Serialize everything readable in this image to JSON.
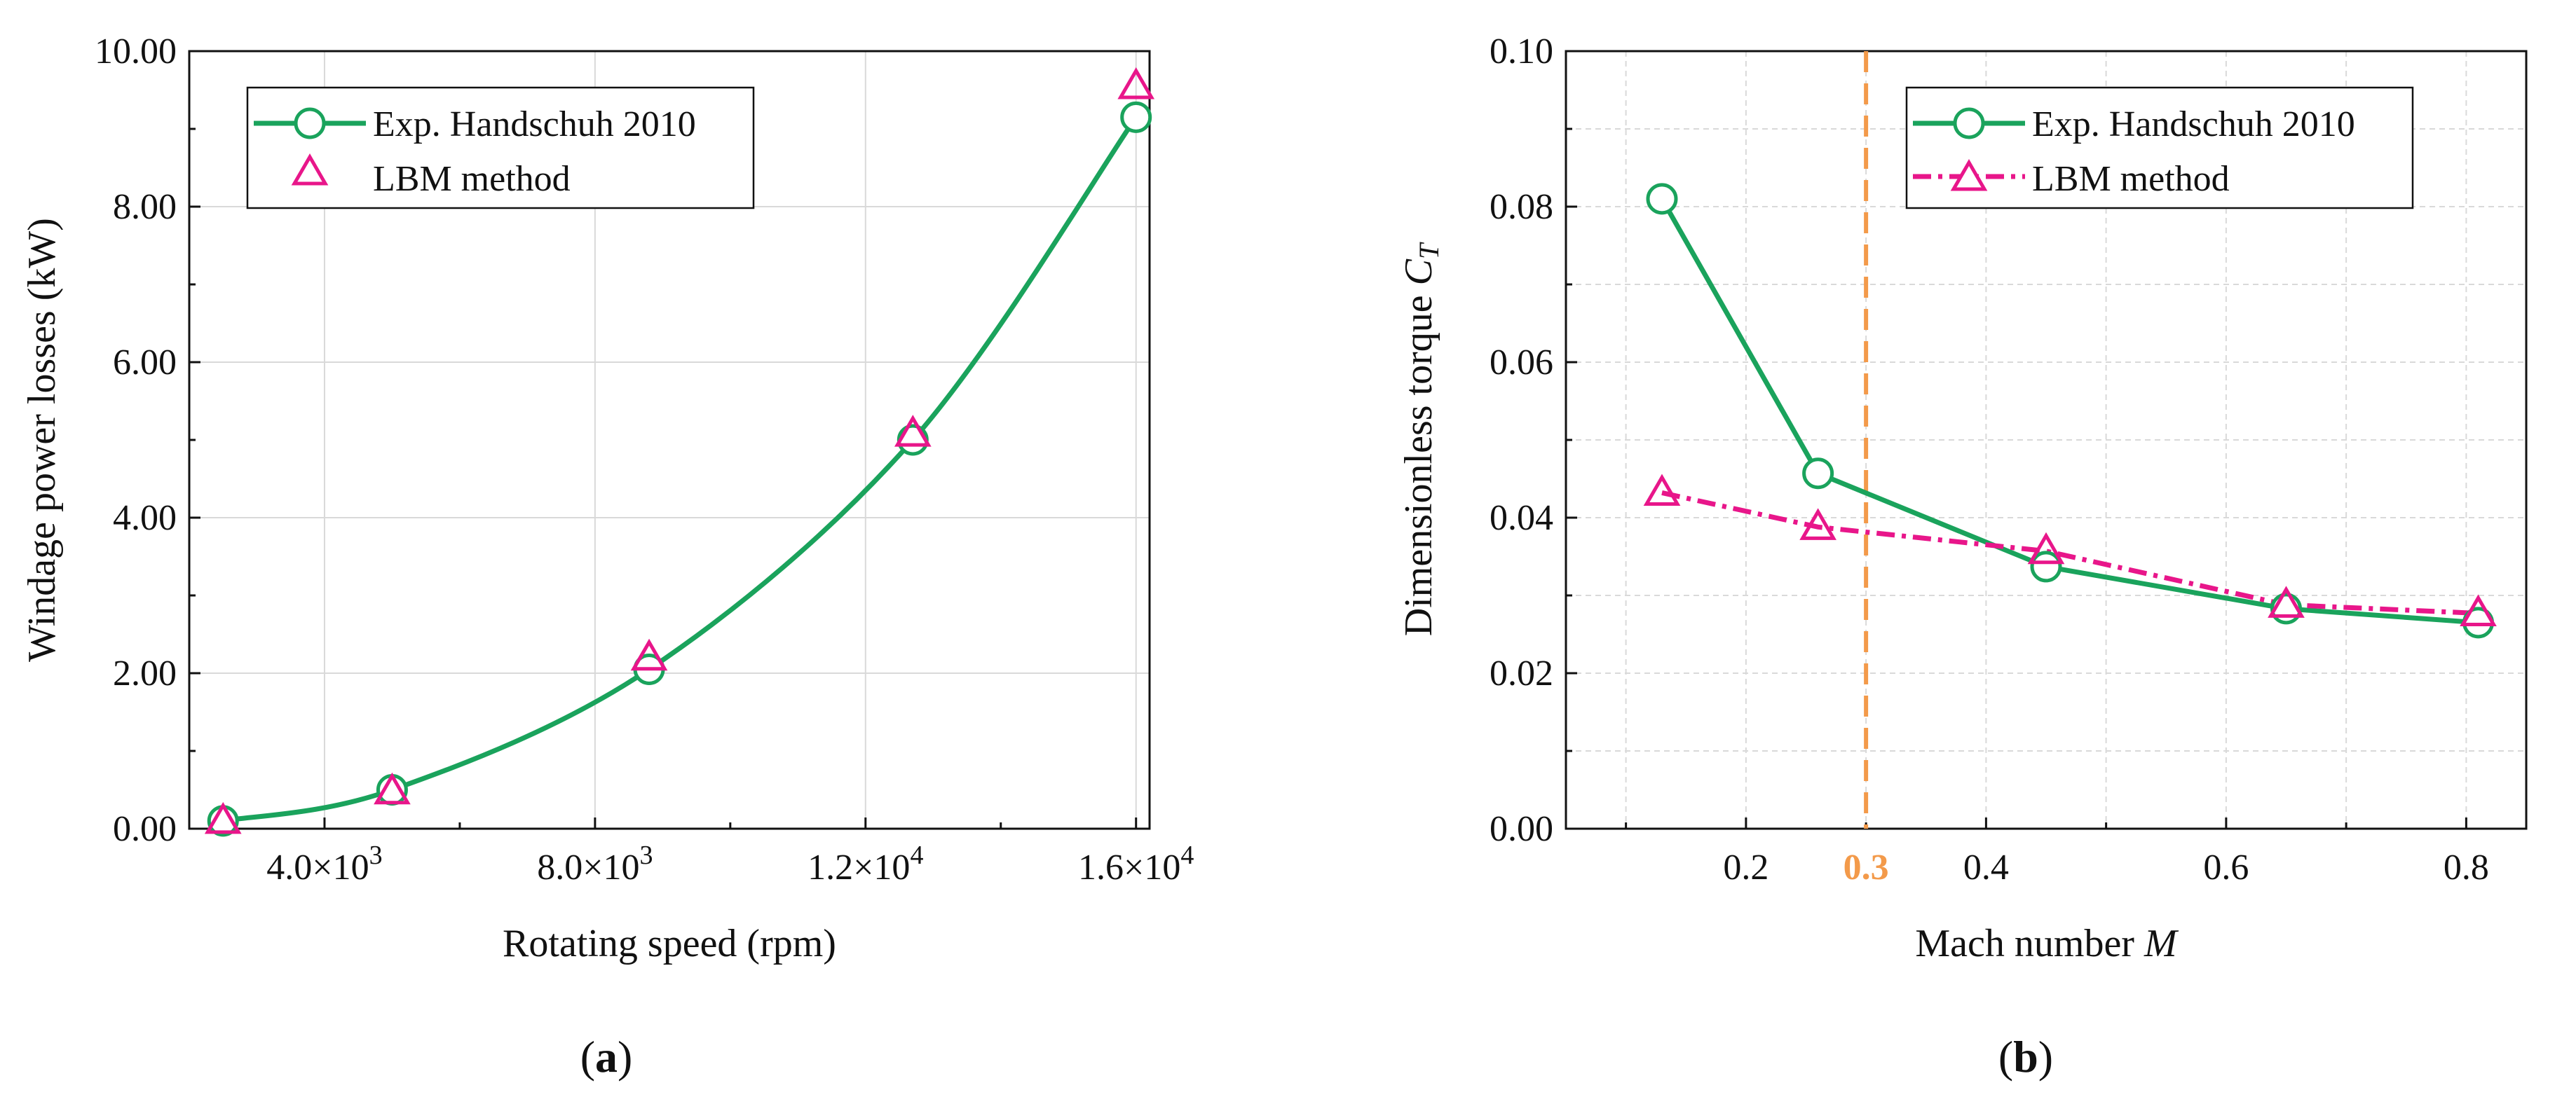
{
  "colors": {
    "exp": "#1aa35c",
    "lbm": "#e8168a",
    "vline": "#f39a4a",
    "axis": "#111111",
    "grid": "#d9d9d9"
  },
  "chart_data": [
    {
      "type": "line",
      "panel_label": "a",
      "xlabel": "Rotating speed (rpm)",
      "ylabel": "Windage power losses (kW)",
      "xlim": [
        2000,
        16200
      ],
      "ylim": [
        0,
        10
      ],
      "xticks": [
        4000,
        8000,
        12000,
        16000
      ],
      "xtick_mantissas": [
        "4.0",
        "8.0",
        "1.2",
        "1.6"
      ],
      "xtick_exponents": [
        "3",
        "3",
        "4",
        "4"
      ],
      "xtick_base": "×10",
      "yticks": [
        0,
        2,
        4,
        6,
        8,
        10
      ],
      "ytick_labels": [
        "0.00",
        "2.00",
        "4.00",
        "6.00",
        "8.00",
        "10.00"
      ],
      "legend": {
        "position": "top-left",
        "entries": [
          "Exp. Handschuh 2010",
          "LBM method"
        ]
      },
      "series": [
        {
          "name": "Exp. Handschuh 2010",
          "marker": "circle",
          "line": "smooth",
          "x": [
            2500,
            5000,
            8800,
            12700,
            16000
          ],
          "y": [
            0.1,
            0.5,
            2.05,
            5.0,
            9.15
          ]
        },
        {
          "name": "LBM method",
          "marker": "triangle",
          "line": "none",
          "x": [
            2500,
            5000,
            8800,
            12700,
            16000
          ],
          "y": [
            0.1,
            0.48,
            2.2,
            5.08,
            9.55
          ]
        }
      ]
    },
    {
      "type": "line",
      "panel_label": "b",
      "xlabel_text": "Mach number ",
      "xlabel_symbol": "M",
      "ylabel_text": "Dimensionless torque ",
      "ylabel_symbol": "C",
      "ylabel_subscript": "T",
      "xlim": [
        0.05,
        0.85
      ],
      "ylim": [
        0,
        0.1
      ],
      "xticks": [
        0.2,
        0.4,
        0.6,
        0.8
      ],
      "xtick_labels": [
        "0.2",
        "0.4",
        "0.6",
        "0.8"
      ],
      "yticks": [
        0,
        0.02,
        0.04,
        0.06,
        0.08,
        0.1
      ],
      "ytick_labels": [
        "0.00",
        "0.02",
        "0.04",
        "0.06",
        "0.08",
        "0.10"
      ],
      "vline": {
        "x": 0.3,
        "label": "0.3"
      },
      "legend": {
        "position": "top-right",
        "entries": [
          "Exp. Handschuh 2010",
          "LBM method"
        ]
      },
      "series": [
        {
          "name": "Exp. Handschuh 2010",
          "marker": "circle",
          "line": "solid",
          "x": [
            0.13,
            0.26,
            0.45,
            0.65,
            0.81
          ],
          "y": [
            0.081,
            0.0457,
            0.0337,
            0.0283,
            0.0265
          ]
        },
        {
          "name": "LBM method",
          "marker": "triangle",
          "line": "dashdot",
          "x": [
            0.13,
            0.26,
            0.45,
            0.65,
            0.81
          ],
          "y": [
            0.0432,
            0.0388,
            0.0357,
            0.0288,
            0.0277
          ]
        }
      ]
    }
  ]
}
